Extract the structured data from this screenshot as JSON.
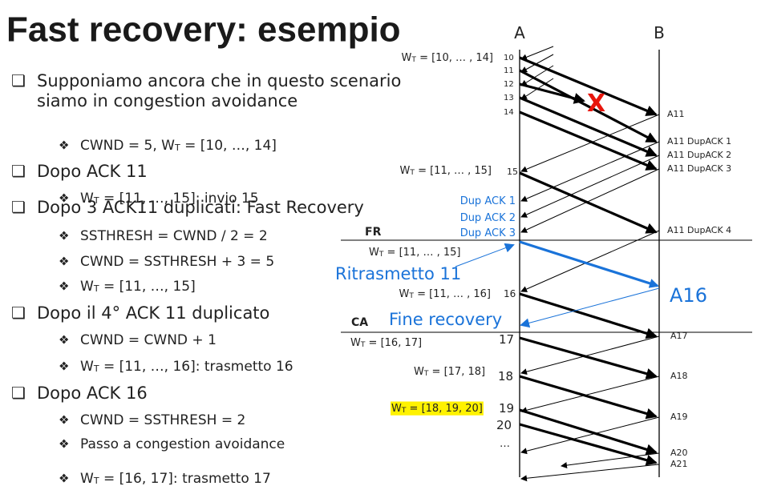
{
  "title": "Fast recovery: esempio",
  "bullets": [
    {
      "lines": [
        "Supponiamo ancora che in questo scenario",
        "siamo in congestion avoidance"
      ],
      "items": [
        [
          "CWND = 5, W",
          "T",
          " = [10, …, 14]"
        ]
      ]
    },
    {
      "lines": [
        "Dopo ACK 11"
      ],
      "items": [
        [
          "W",
          "T",
          " = [11, …, 15]: invio 15"
        ]
      ]
    },
    {
      "lines": [
        "Dopo 3 ACK11 duplicati: Fast Recovery"
      ],
      "items": [
        [
          "SSTHRESH = CWND / 2 = 2"
        ],
        [
          "CWND = SSTHRESH + 3 = 5"
        ],
        [
          "W",
          "T",
          " = [11, …, 15]"
        ]
      ]
    },
    {
      "lines": [
        "Dopo il 4° ACK 11 duplicato"
      ],
      "items": [
        [
          "CWND = CWND + 1"
        ],
        [
          "W",
          "T",
          " = [11, …, 16]: trasmetto 16"
        ]
      ]
    },
    {
      "lines": [
        "Dopo ACK 16"
      ],
      "items": [
        [
          "CWND = SSTHRESH = 2"
        ],
        [
          "Passo a congestion avoidance"
        ],
        [
          "W",
          "T",
          " = [16, 17]: trasmetto 17"
        ]
      ]
    }
  ],
  "diagram": {
    "labels": [
      [
        "A"
      ],
      [
        "B"
      ],
      [
        "W",
        "T",
        " = [10, … , 14]"
      ],
      [
        "10"
      ],
      [
        "11"
      ],
      [
        "12"
      ],
      [
        "13"
      ],
      [
        "14"
      ],
      [
        "X"
      ],
      [
        "A11"
      ],
      [
        "A11 DupACK 1"
      ],
      [
        "A11 DupACK 2"
      ],
      [
        "A11 DupACK 3"
      ],
      [
        "W",
        "T",
        " = [11, … , 15]"
      ],
      [
        "15"
      ],
      [
        "Dup ACK 1"
      ],
      [
        "Dup ACK 2"
      ],
      [
        "Dup ACK 3"
      ],
      [
        "FR"
      ],
      [
        "A11 DupACK 4"
      ],
      [
        "W",
        "T",
        " = [11, … , 15]"
      ],
      [
        "Ritrasmetto 11"
      ],
      [
        "A16"
      ],
      [
        "W",
        "T",
        " = [11, … , 16]"
      ],
      [
        "16"
      ],
      [
        "CA"
      ],
      [
        "Fine recovery"
      ],
      [
        "W",
        "T",
        " = [16, 17]"
      ],
      [
        "17"
      ],
      [
        "A17"
      ],
      [
        "W",
        "T",
        " = [17, 18]"
      ],
      [
        "18"
      ],
      [
        "A18"
      ],
      [
        "W",
        "T",
        " = [18, 19, 20]"
      ],
      [
        "19"
      ],
      [
        "20"
      ],
      [
        "…"
      ],
      [
        "A19"
      ],
      [
        "A20"
      ],
      [
        "A21"
      ]
    ]
  }
}
